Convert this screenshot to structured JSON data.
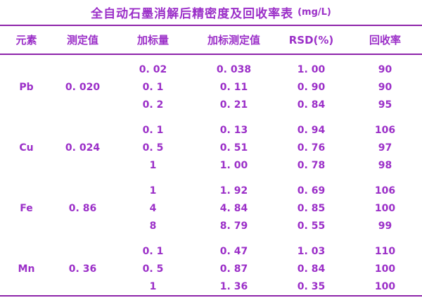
{
  "colors": {
    "text_accent": "#9b2fc8",
    "rule": "#8e24aa",
    "background": "#ffffff"
  },
  "title": {
    "text": "全自动石墨消解后精密度及回收率表",
    "unit": "(mg/L)"
  },
  "columns": [
    "元素",
    "测定值",
    "加标量",
    "加标测定值",
    "RSD(%)",
    "回收率"
  ],
  "groups": [
    {
      "element": "Pb",
      "measured": "0. 020",
      "rows": [
        {
          "spike": "0. 02",
          "spike_measured": "0. 038",
          "rsd": "1. 00",
          "recovery": "90"
        },
        {
          "spike": "0. 1",
          "spike_measured": "0. 11",
          "rsd": "0. 90",
          "recovery": "90"
        },
        {
          "spike": "0. 2",
          "spike_measured": "0. 21",
          "rsd": "0. 84",
          "recovery": "95"
        }
      ]
    },
    {
      "element": "Cu",
      "measured": "0. 024",
      "rows": [
        {
          "spike": "0. 1",
          "spike_measured": "0. 13",
          "rsd": "0. 94",
          "recovery": "106"
        },
        {
          "spike": "0. 5",
          "spike_measured": "0. 51",
          "rsd": "0. 76",
          "recovery": "97"
        },
        {
          "spike": "1",
          "spike_measured": "1. 00",
          "rsd": "0. 78",
          "recovery": "98"
        }
      ]
    },
    {
      "element": "Fe",
      "measured": "0. 86",
      "rows": [
        {
          "spike": "1",
          "spike_measured": "1. 92",
          "rsd": "0. 69",
          "recovery": "106"
        },
        {
          "spike": "4",
          "spike_measured": "4. 84",
          "rsd": "0. 85",
          "recovery": "100"
        },
        {
          "spike": "8",
          "spike_measured": "8. 79",
          "rsd": "0. 55",
          "recovery": "99"
        }
      ]
    },
    {
      "element": "Mn",
      "measured": "0. 36",
      "rows": [
        {
          "spike": "0. 1",
          "spike_measured": "0. 47",
          "rsd": "1. 03",
          "recovery": "110"
        },
        {
          "spike": "0. 5",
          "spike_measured": "0. 87",
          "rsd": "0. 84",
          "recovery": "100"
        },
        {
          "spike": "1",
          "spike_measured": "1. 36",
          "rsd": "0. 35",
          "recovery": "100"
        }
      ]
    }
  ],
  "chart_data": {
    "type": "table",
    "title": "全自动石墨消解后精密度及回收率表 (mg/L)",
    "columns": [
      "元素",
      "测定值",
      "加标量",
      "加标测定值",
      "RSD(%)",
      "回收率"
    ],
    "rows": [
      [
        "Pb",
        0.02,
        0.02,
        0.038,
        1.0,
        90
      ],
      [
        "Pb",
        0.02,
        0.1,
        0.11,
        0.9,
        90
      ],
      [
        "Pb",
        0.02,
        0.2,
        0.21,
        0.84,
        95
      ],
      [
        "Cu",
        0.024,
        0.1,
        0.13,
        0.94,
        106
      ],
      [
        "Cu",
        0.024,
        0.5,
        0.51,
        0.76,
        97
      ],
      [
        "Cu",
        0.024,
        1,
        1.0,
        0.78,
        98
      ],
      [
        "Fe",
        0.86,
        1,
        1.92,
        0.69,
        106
      ],
      [
        "Fe",
        0.86,
        4,
        4.84,
        0.85,
        100
      ],
      [
        "Fe",
        0.86,
        8,
        8.79,
        0.55,
        99
      ],
      [
        "Mn",
        0.36,
        0.1,
        0.47,
        1.03,
        110
      ],
      [
        "Mn",
        0.36,
        0.5,
        0.87,
        0.84,
        100
      ],
      [
        "Mn",
        0.36,
        1,
        1.36,
        0.35,
        100
      ]
    ]
  }
}
